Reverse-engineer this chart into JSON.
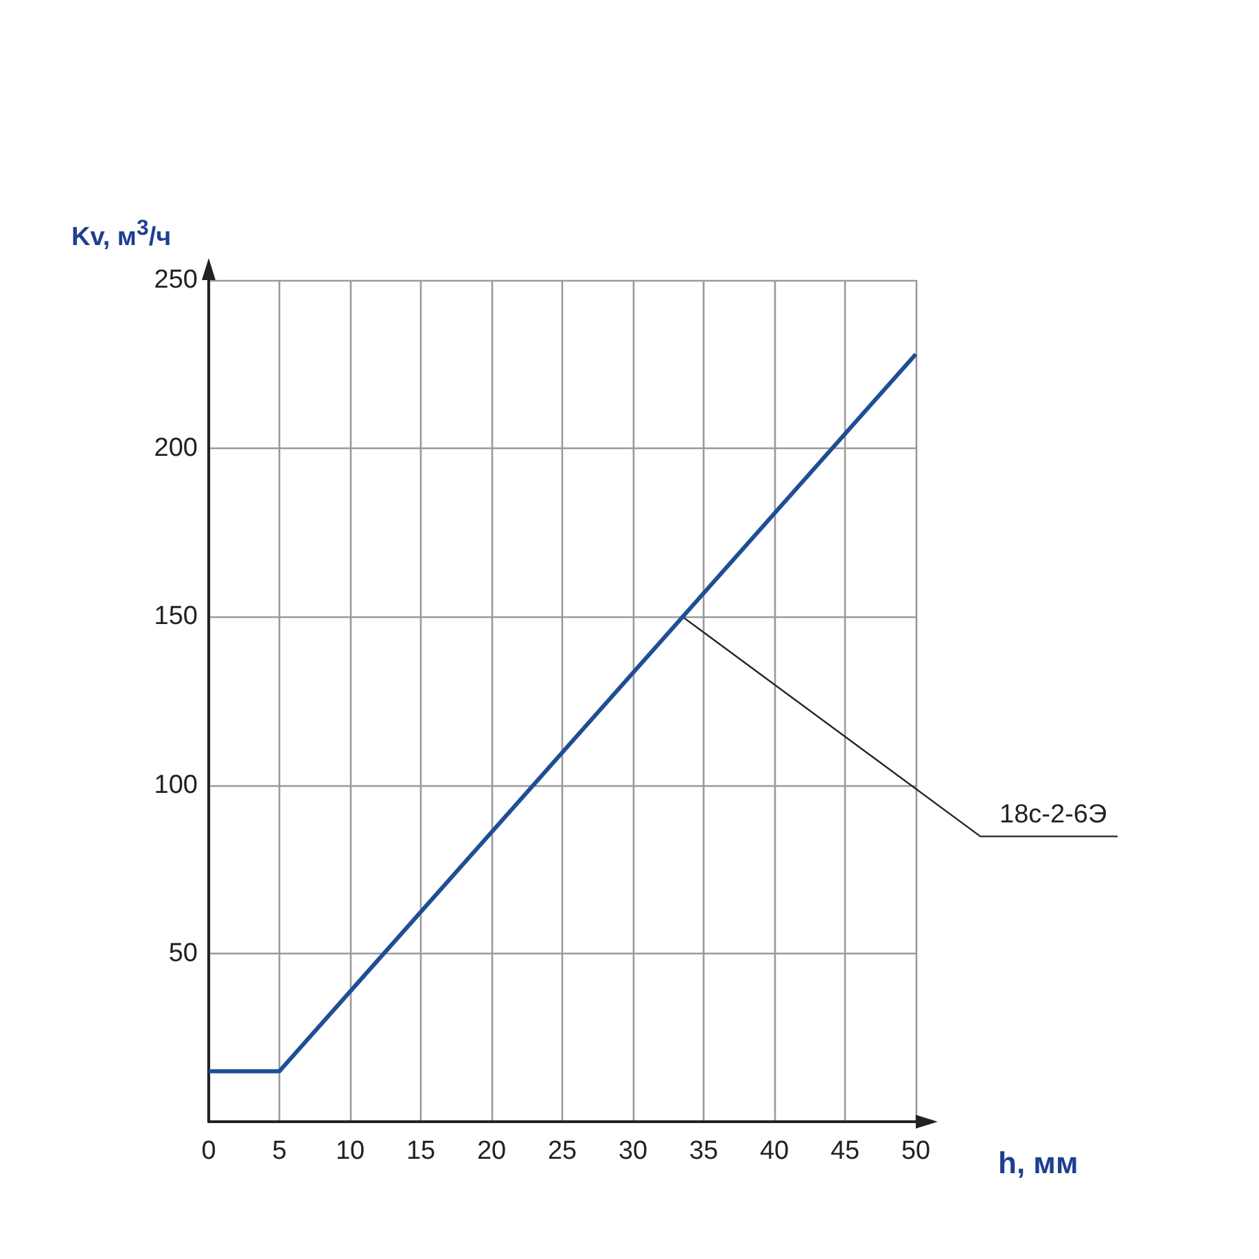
{
  "chart_data": {
    "type": "line",
    "xlabel": "h, мм",
    "ylabel": "Kv, м$^{3}$/ч",
    "x": [
      0,
      5,
      50
    ],
    "series": [
      {
        "color": "#1f4e96",
        "values": [
          15,
          15,
          228
        ]
      }
    ],
    "xlim": [
      0,
      50
    ],
    "xticks": [
      0,
      5,
      10,
      15,
      20,
      25,
      30,
      35,
      40,
      45,
      50
    ],
    "ylim": [
      0,
      250
    ],
    "yticks": [
      50,
      100,
      150,
      200,
      250
    ],
    "grid": true,
    "marker": "none",
    "line_style": "solid",
    "annotations": [
      {
        "text": "18c-2-6Э",
        "x": 33.5,
        "y": 150
      }
    ]
  }
}
